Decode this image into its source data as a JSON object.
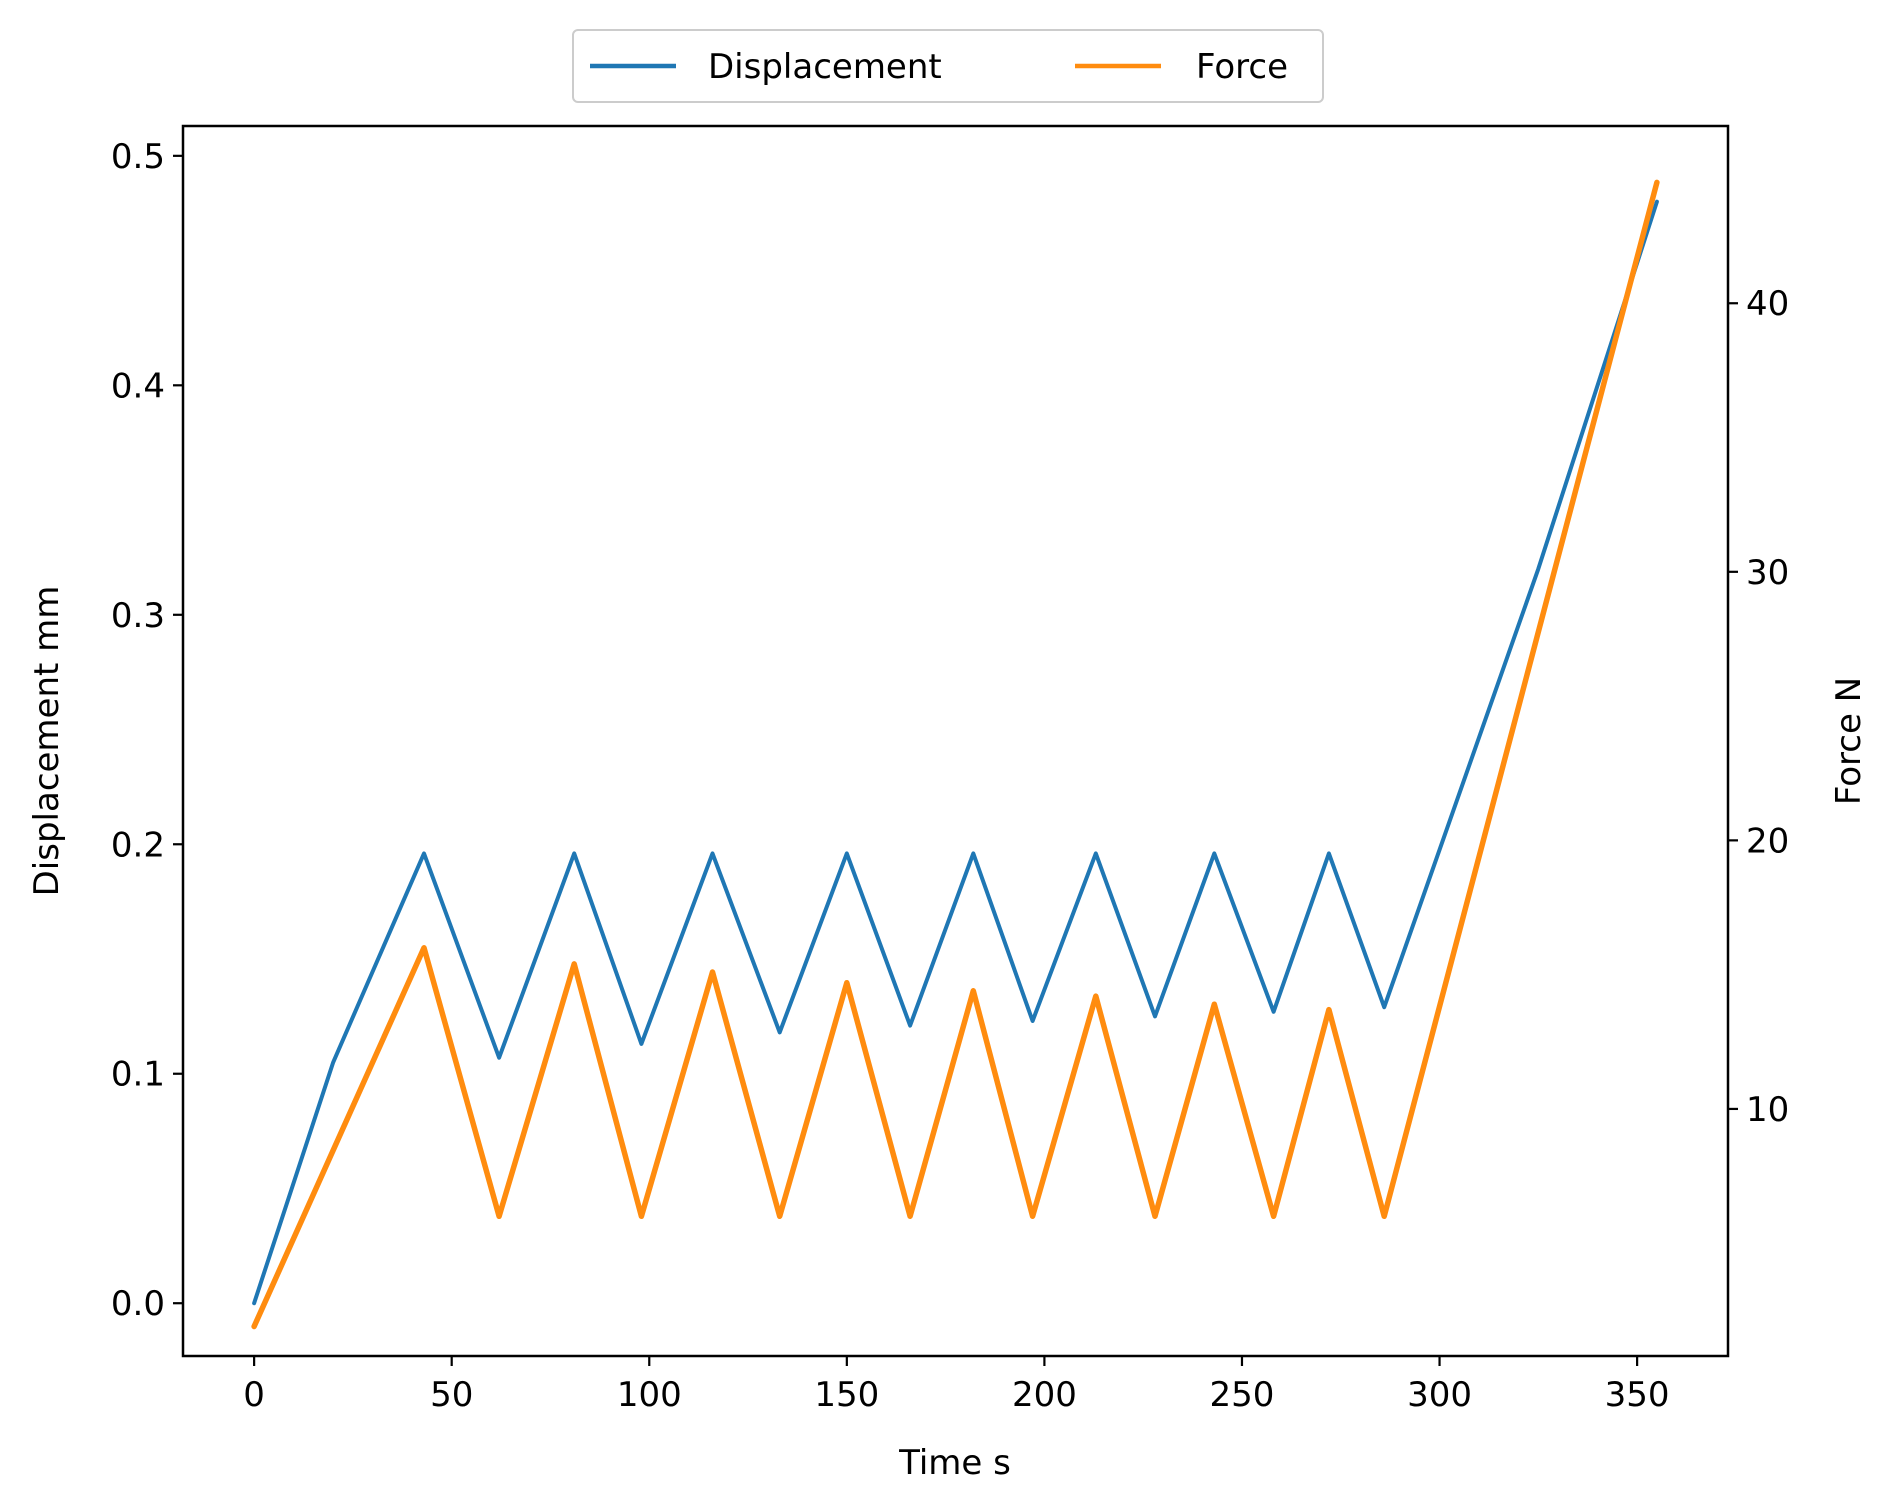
{
  "chart_data": {
    "type": "line",
    "xlabel": "Time s",
    "ylabel_left": "Displacement mm",
    "ylabel_right": "Force N",
    "xlim": [
      -18,
      373
    ],
    "ylim_left": [
      -0.023,
      0.513
    ],
    "ylim_right": [
      0.8,
      46.6
    ],
    "x_ticks": [
      0,
      50,
      100,
      150,
      200,
      250,
      300,
      350
    ],
    "y_left_ticks": [
      0.0,
      0.1,
      0.2,
      0.3,
      0.4,
      0.5
    ],
    "y_right_ticks": [
      10,
      20,
      30,
      40
    ],
    "legend_position": "top-center (outside plot)",
    "grid": false,
    "series": [
      {
        "name": "Displacement",
        "axis": "left",
        "color": "#1f77b4",
        "points": [
          [
            0,
            0.0
          ],
          [
            20,
            0.105
          ],
          [
            43,
            0.196
          ],
          [
            62,
            0.107
          ],
          [
            81,
            0.196
          ],
          [
            98,
            0.113
          ],
          [
            116,
            0.196
          ],
          [
            133,
            0.118
          ],
          [
            150,
            0.196
          ],
          [
            166,
            0.121
          ],
          [
            182,
            0.196
          ],
          [
            197,
            0.123
          ],
          [
            213,
            0.196
          ],
          [
            228,
            0.125
          ],
          [
            243,
            0.196
          ],
          [
            258,
            0.127
          ],
          [
            272,
            0.196
          ],
          [
            286,
            0.129
          ],
          [
            325,
            0.32
          ],
          [
            355,
            0.48
          ]
        ]
      },
      {
        "name": "Force",
        "axis": "right",
        "color": "#ff8c0f",
        "points": [
          [
            0,
            1.9
          ],
          [
            43,
            16.0
          ],
          [
            62,
            6.0
          ],
          [
            81,
            15.4
          ],
          [
            98,
            6.0
          ],
          [
            116,
            15.1
          ],
          [
            133,
            6.0
          ],
          [
            150,
            14.7
          ],
          [
            166,
            6.0
          ],
          [
            182,
            14.4
          ],
          [
            197,
            6.0
          ],
          [
            213,
            14.2
          ],
          [
            228,
            6.0
          ],
          [
            243,
            13.9
          ],
          [
            258,
            6.0
          ],
          [
            272,
            13.7
          ],
          [
            286,
            6.0
          ],
          [
            355,
            44.5
          ]
        ]
      }
    ]
  }
}
